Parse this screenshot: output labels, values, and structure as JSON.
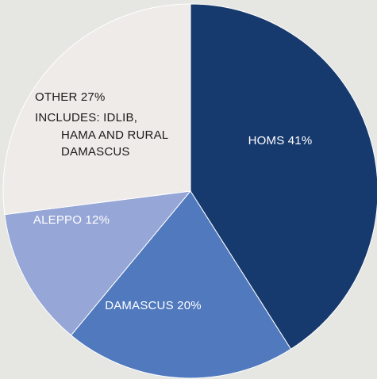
{
  "chart_data": {
    "type": "pie",
    "slices": [
      {
        "label": "HOMS 41%",
        "value": 41,
        "color": "#173a6e"
      },
      {
        "label": "DAMASCUS 20%",
        "value": 20,
        "color": "#5079be"
      },
      {
        "label": "ALEPPO 12%",
        "value": 12,
        "color": "#96a6d6"
      },
      {
        "label": "OTHER 27%",
        "value": 27,
        "color": "#efebe8",
        "note_lines": [
          "INCLUDES: IDLIB,",
          "HAMA AND RURAL",
          "DAMASCUS"
        ]
      }
    ]
  }
}
